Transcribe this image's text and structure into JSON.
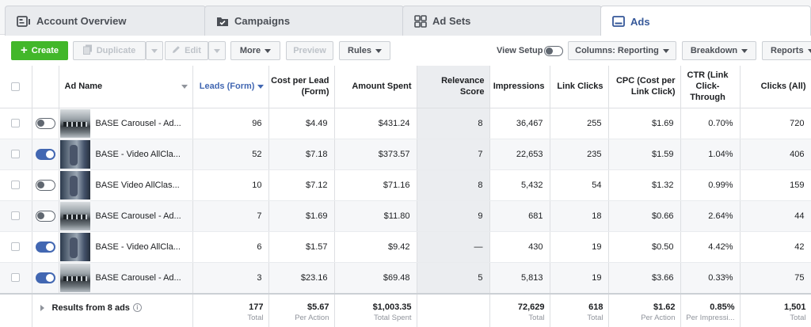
{
  "tabs": [
    {
      "label": "Account Overview",
      "icon": "account-overview-icon"
    },
    {
      "label": "Campaigns",
      "icon": "folder-check-icon"
    },
    {
      "label": "Ad Sets",
      "icon": "grid-icon"
    },
    {
      "label": "Ads",
      "icon": "ad-icon"
    }
  ],
  "toolbar": {
    "create": "Create",
    "duplicate": "Duplicate",
    "edit": "Edit",
    "more": "More",
    "preview": "Preview",
    "rules": "Rules",
    "view_setup": "View Setup",
    "columns": "Columns: Reporting",
    "breakdown": "Breakdown",
    "reports": "Reports"
  },
  "table": {
    "headers": {
      "ad_name": "Ad Name",
      "leads": "Leads (Form)",
      "cost_per_lead": "Cost per Lead (Form)",
      "amount_spent": "Amount Spent",
      "relevance": "Relevance Score",
      "impressions": "Impressions",
      "link_clicks": "Link Clicks",
      "cpc": "CPC (Cost per Link Click)",
      "ctr": "CTR (Link Click-Through",
      "clicks_all": "Clicks (All)"
    },
    "rows": [
      {
        "on": false,
        "thumb": "carousel",
        "name": "BASE Carousel - Ad...",
        "leads": "96",
        "cpl": "$4.49",
        "spent": "$431.24",
        "relevance": "8",
        "impressions": "36,467",
        "link_clicks": "255",
        "cpc": "$1.69",
        "ctr": "0.70%",
        "clicks": "720"
      },
      {
        "on": true,
        "thumb": "video",
        "name": "BASE - Video AllCla...",
        "leads": "52",
        "cpl": "$7.18",
        "spent": "$373.57",
        "relevance": "7",
        "impressions": "22,653",
        "link_clicks": "235",
        "cpc": "$1.59",
        "ctr": "1.04%",
        "clicks": "406"
      },
      {
        "on": false,
        "thumb": "video",
        "name": "BASE Video AllClas...",
        "leads": "10",
        "cpl": "$7.12",
        "spent": "$71.16",
        "relevance": "8",
        "impressions": "5,432",
        "link_clicks": "54",
        "cpc": "$1.32",
        "ctr": "0.99%",
        "clicks": "159"
      },
      {
        "on": false,
        "thumb": "carousel",
        "name": "BASE Carousel - Ad...",
        "leads": "7",
        "cpl": "$1.69",
        "spent": "$11.80",
        "relevance": "9",
        "impressions": "681",
        "link_clicks": "18",
        "cpc": "$0.66",
        "ctr": "2.64%",
        "clicks": "44"
      },
      {
        "on": true,
        "thumb": "video",
        "name": "BASE - Video AllCla...",
        "leads": "6",
        "cpl": "$1.57",
        "spent": "$9.42",
        "relevance": "—",
        "impressions": "430",
        "link_clicks": "19",
        "cpc": "$0.50",
        "ctr": "4.42%",
        "clicks": "42"
      },
      {
        "on": true,
        "thumb": "carousel",
        "name": "BASE Carousel - Ad...",
        "leads": "3",
        "cpl": "$23.16",
        "spent": "$69.48",
        "relevance": "5",
        "impressions": "5,813",
        "link_clicks": "19",
        "cpc": "$3.66",
        "ctr": "0.33%",
        "clicks": "75"
      }
    ],
    "footer": {
      "results_label": "Results from 8 ads",
      "leads": {
        "value": "177",
        "sub": "Total"
      },
      "cpl": {
        "value": "$5.67",
        "sub": "Per Action"
      },
      "spent": {
        "value": "$1,003.35",
        "sub": "Total Spent"
      },
      "impressions": {
        "value": "72,629",
        "sub": "Total"
      },
      "link_clicks": {
        "value": "618",
        "sub": "Total"
      },
      "cpc": {
        "value": "$1.62",
        "sub": "Per Action"
      },
      "ctr": {
        "value": "0.85%",
        "sub": "Per Impressi..."
      },
      "clicks": {
        "value": "1,501",
        "sub": "Total"
      }
    }
  },
  "colors": {
    "accent": "#4267b2",
    "create_button": "#42b72a",
    "toggle_on": "#4267b2"
  }
}
